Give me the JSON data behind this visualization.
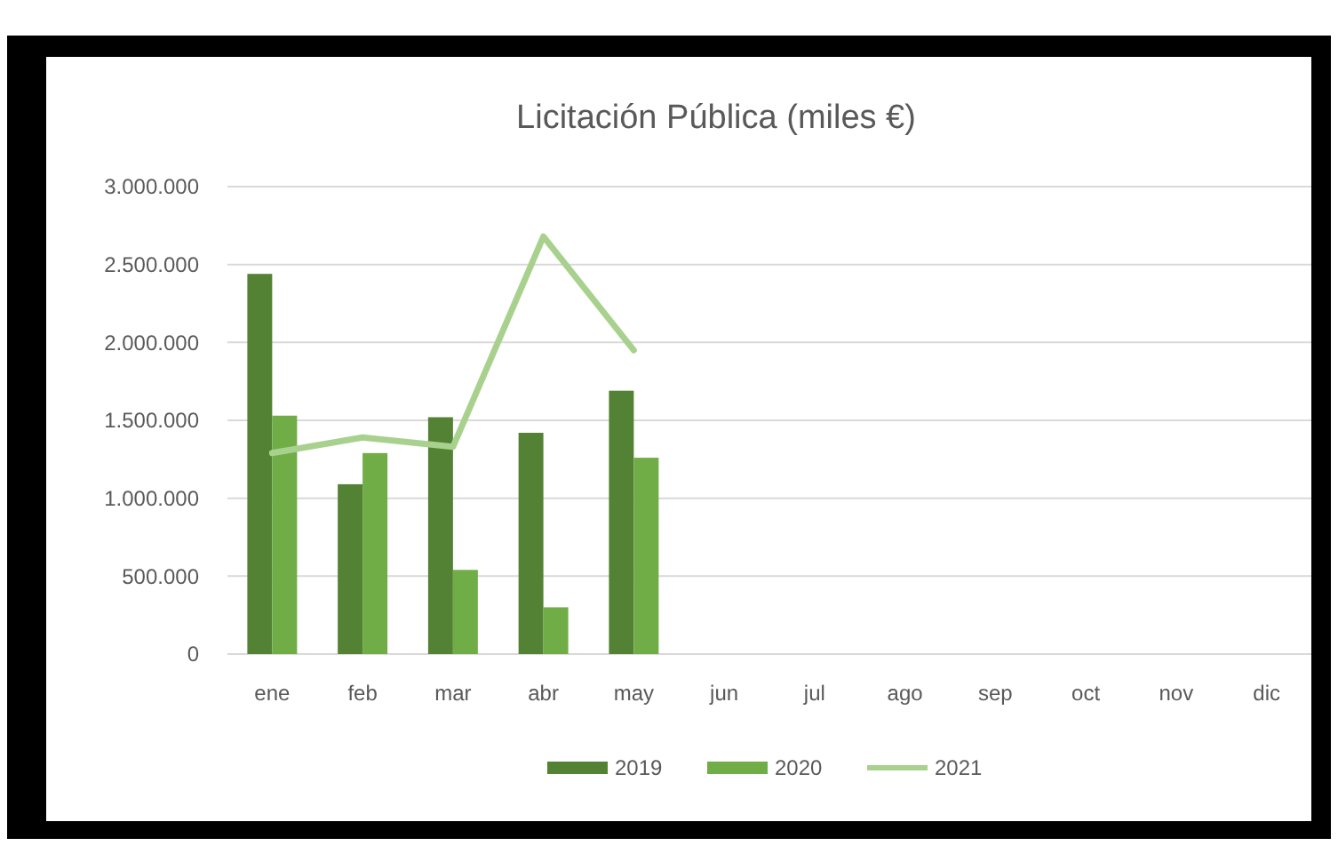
{
  "chart_data": {
    "type": "bar",
    "title": "Licitación Pública (miles €)",
    "categories": [
      "ene",
      "feb",
      "mar",
      "abr",
      "may",
      "jun",
      "jul",
      "ago",
      "sep",
      "oct",
      "nov",
      "dic"
    ],
    "series": [
      {
        "name": "2019",
        "color": "#548235",
        "values": [
          2440000,
          1090000,
          1520000,
          1420000,
          1690000,
          null,
          null,
          null,
          null,
          null,
          null,
          null
        ]
      },
      {
        "name": "2020",
        "color": "#70ad47",
        "values": [
          1530000,
          1290000,
          540000,
          300000,
          1260000,
          null,
          null,
          null,
          null,
          null,
          null,
          null
        ]
      },
      {
        "name": "2021",
        "type": "line",
        "color": "#a9d18e",
        "values": [
          1290000,
          1390000,
          1330000,
          2680000,
          1950000,
          null,
          null,
          null,
          null,
          null,
          null,
          null
        ]
      }
    ],
    "ylim": [
      0,
      3000000
    ],
    "yticks": [
      0,
      {
        "value": 500000,
        "label": "500.000"
      },
      {
        "value": 1000000,
        "label": "1.000.000"
      },
      {
        "value": 1500000,
        "label": "1.500.000"
      },
      {
        "value": 2000000,
        "label": "2.000.000"
      },
      {
        "value": 2500000,
        "label": "2.500.000"
      },
      {
        "value": 3000000,
        "label": "3.000.000"
      }
    ],
    "grid": "y",
    "legend": "bottom",
    "marker": "none",
    "line_style": "solid"
  }
}
